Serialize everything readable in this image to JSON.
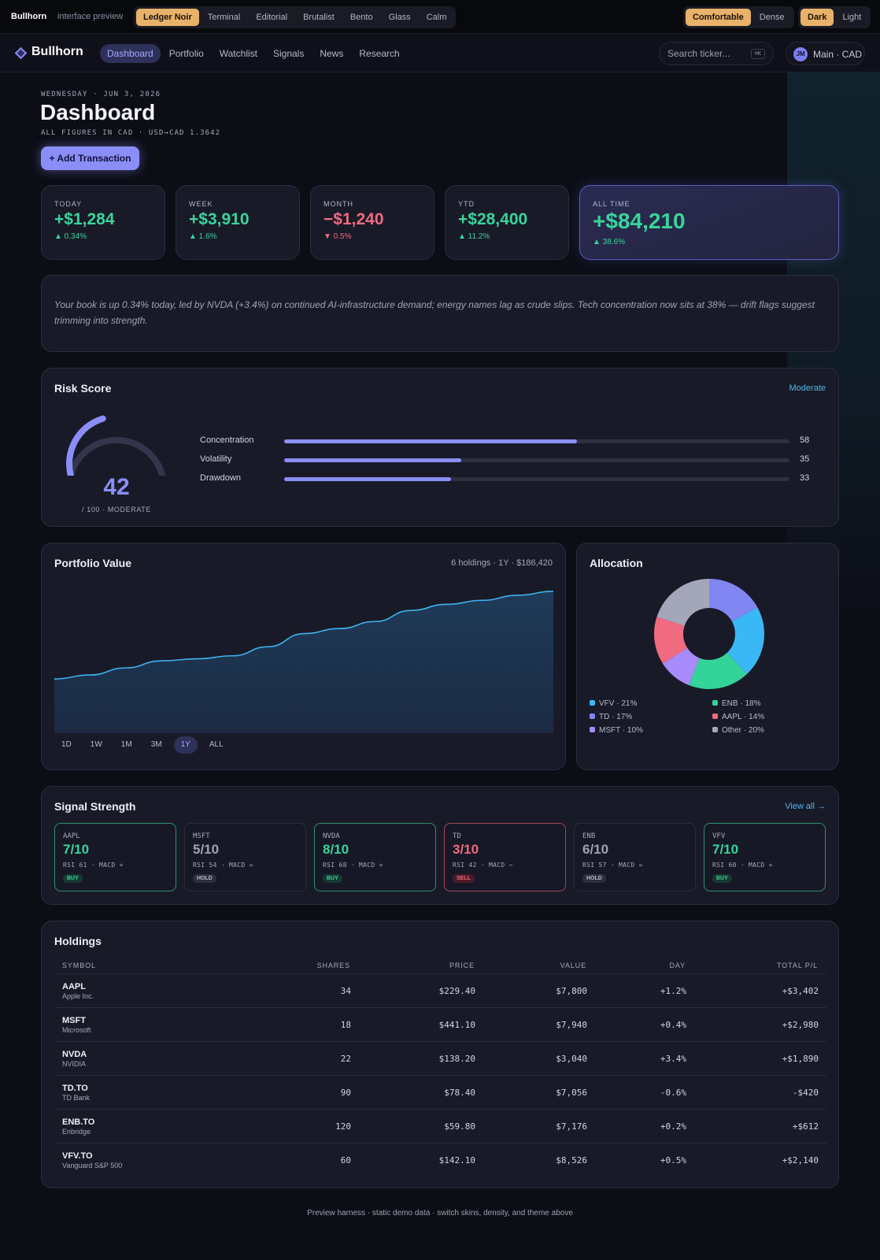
{
  "harness": {
    "brand": "Bullhorn",
    "subtitle": "interface preview",
    "skins": [
      "Ledger Noir",
      "Terminal",
      "Editorial",
      "Brutalist",
      "Bento",
      "Glass",
      "Calm"
    ],
    "density": [
      "Comfortable",
      "Dense"
    ],
    "theme": [
      "Dark",
      "Light"
    ]
  },
  "header": {
    "logo": "Bullhorn",
    "tabs": [
      "Dashboard",
      "Portfolio",
      "Watchlist",
      "Signals",
      "News",
      "Research"
    ],
    "search_placeholder": "Search ticker...",
    "search_shortcut": "⌘K",
    "avatar_initials": "JM",
    "account": "Main · CAD"
  },
  "page": {
    "date": "WEDNESDAY · JUN 3, 2026",
    "title": "Dashboard",
    "figures_note": "ALL FIGURES IN CAD · USD→CAD 1.3642",
    "add_button": "+ Add Transaction"
  },
  "stats": [
    {
      "label": "TODAY",
      "value": "+$1,284",
      "delta": "▲ 0.34%",
      "direction": "pos"
    },
    {
      "label": "WEEK",
      "value": "+$3,910",
      "delta": "▲ 1.6%",
      "direction": "pos"
    },
    {
      "label": "MONTH",
      "value": "−$1,240",
      "delta": "▼ 0.5%",
      "direction": "neg"
    },
    {
      "label": "YTD",
      "value": "+$28,400",
      "delta": "▲ 11.2%",
      "direction": "pos"
    },
    {
      "label": "ALL TIME",
      "value": "+$84,210",
      "delta": "▲ 38.6%",
      "direction": "pos"
    }
  ],
  "summary": "Your book is up 0.34% today, led by NVDA (+3.4%) on continued AI-infrastructure demand; energy names lag as crude slips. Tech concentration now sits at 38% — drift flags suggest trimming into strength.",
  "risk": {
    "title": "Risk Score",
    "level_link": "Moderate",
    "score": "42",
    "score_value": 42,
    "score_sub": "/ 100 · MODERATE",
    "factors": [
      {
        "label": "Concentration",
        "value": "58",
        "pct": 58
      },
      {
        "label": "Volatility",
        "value": "35",
        "pct": 35
      },
      {
        "label": "Drawdown",
        "value": "33",
        "pct": 33
      }
    ]
  },
  "portfolio": {
    "title": "Portfolio Value",
    "meta": "6 holdings · 1Y · $186,420",
    "ranges": [
      "1D",
      "1W",
      "1M",
      "3M",
      "1Y",
      "ALL"
    ],
    "active_range": "1Y",
    "series": [
      0.1,
      0.14,
      0.21,
      0.28,
      0.3,
      0.33,
      0.42,
      0.55,
      0.6,
      0.67,
      0.78,
      0.84,
      0.88,
      0.93,
      0.97
    ]
  },
  "allocation": {
    "title": "Allocation",
    "slices": [
      {
        "label": "VFV · 21%",
        "pct": 21,
        "color": "#3ab8f5"
      },
      {
        "label": "ENB · 18%",
        "pct": 18,
        "color": "#34d399"
      },
      {
        "label": "TD · 17%",
        "pct": 17,
        "color": "#8186f3"
      },
      {
        "label": "AAPL · 14%",
        "pct": 14,
        "color": "#f06a80"
      },
      {
        "label": "MSFT · 10%",
        "pct": 10,
        "color": "#a78bfa"
      },
      {
        "label": "Other · 20%",
        "pct": 20,
        "color": "#a4a6ba"
      }
    ]
  },
  "signals": {
    "title": "Signal Strength",
    "view_all": "View all →",
    "items": [
      {
        "ticker": "AAPL",
        "score": "7/10",
        "meta": "RSI 61 · MACD +",
        "action": "BUY",
        "kind": "buy"
      },
      {
        "ticker": "MSFT",
        "score": "5/10",
        "meta": "RSI 54 · MACD =",
        "action": "HOLD",
        "kind": "hold"
      },
      {
        "ticker": "NVDA",
        "score": "8/10",
        "meta": "RSI 68 · MACD +",
        "action": "BUY",
        "kind": "buy"
      },
      {
        "ticker": "TD",
        "score": "3/10",
        "meta": "RSI 42 · MACD −",
        "action": "SELL",
        "kind": "sell"
      },
      {
        "ticker": "ENB",
        "score": "6/10",
        "meta": "RSI 57 · MACD =",
        "action": "HOLD",
        "kind": "hold"
      },
      {
        "ticker": "VFV",
        "score": "7/10",
        "meta": "RSI 60 · MACD +",
        "action": "BUY",
        "kind": "buy"
      }
    ]
  },
  "holdings": {
    "title": "Holdings",
    "columns": [
      "SYMBOL",
      "SHARES",
      "PRICE",
      "VALUE",
      "DAY",
      "TOTAL P/L"
    ],
    "rows": [
      {
        "symbol": "AAPL",
        "name": "Apple Inc.",
        "shares": "34",
        "price": "$229.40",
        "value": "$7,800",
        "day": "+1.2%",
        "pl": "+$3,402",
        "dir": "pos"
      },
      {
        "symbol": "MSFT",
        "name": "Microsoft",
        "shares": "18",
        "price": "$441.10",
        "value": "$7,940",
        "day": "+0.4%",
        "pl": "+$2,980",
        "dir": "pos"
      },
      {
        "symbol": "NVDA",
        "name": "NVIDIA",
        "shares": "22",
        "price": "$138.20",
        "value": "$3,040",
        "day": "+3.4%",
        "pl": "+$1,890",
        "dir": "pos"
      },
      {
        "symbol": "TD.TO",
        "name": "TD Bank",
        "shares": "90",
        "price": "$78.40",
        "value": "$7,056",
        "day": "-0.6%",
        "pl": "-$420",
        "dir": "neg"
      },
      {
        "symbol": "ENB.TO",
        "name": "Enbridge",
        "shares": "120",
        "price": "$59.80",
        "value": "$7,176",
        "day": "+0.2%",
        "pl": "+$612",
        "dir": "pos"
      },
      {
        "symbol": "VFV.TO",
        "name": "Vanguard S&P 500",
        "shares": "60",
        "price": "$142.10",
        "value": "$8,526",
        "day": "+0.5%",
        "pl": "+$2,140",
        "dir": "pos"
      }
    ]
  },
  "footer": "Preview harness · static demo data · switch skins, density, and theme above"
}
